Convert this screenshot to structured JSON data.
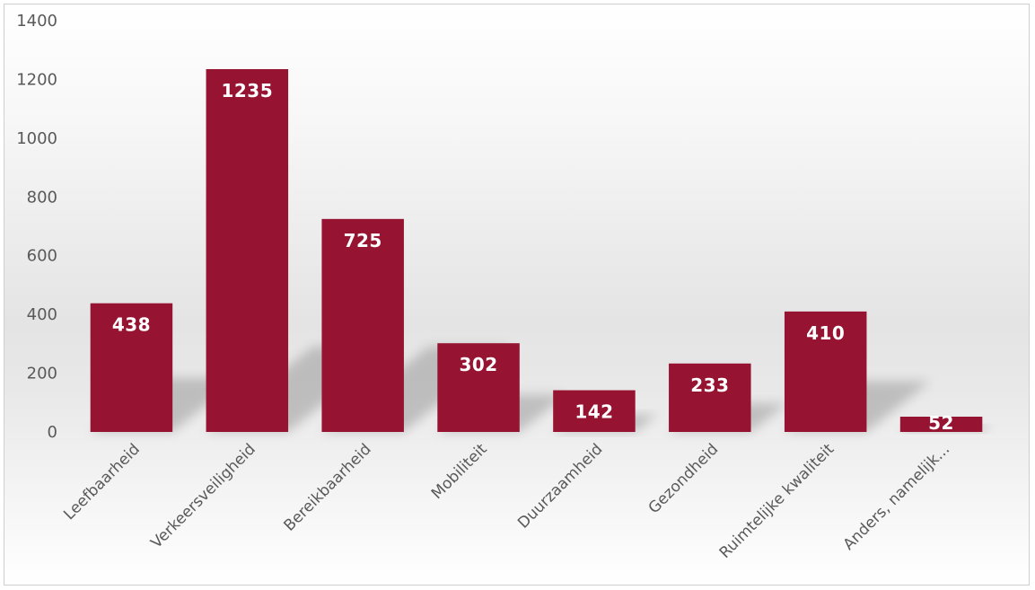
{
  "chart_data": {
    "type": "bar",
    "title": "",
    "xlabel": "",
    "ylabel": "",
    "categories": [
      "Leefbaarheid",
      "Verkeersveiligheid",
      "Bereikbaarheid",
      "Mobiliteit",
      "Duurzaamheid",
      "Gezondheid",
      "Ruimtelijke kwaliteit",
      "Anders, namelijk..."
    ],
    "values": [
      438,
      1235,
      725,
      302,
      142,
      233,
      410,
      52
    ],
    "ylim": [
      0,
      1400
    ],
    "yticks": [
      0,
      200,
      400,
      600,
      800,
      1000,
      1200,
      1400
    ],
    "grid": false,
    "legend": "none",
    "data_labels": true,
    "colors": {
      "bar": "#961432",
      "label": "#ffffff",
      "tick": "#595959"
    }
  }
}
